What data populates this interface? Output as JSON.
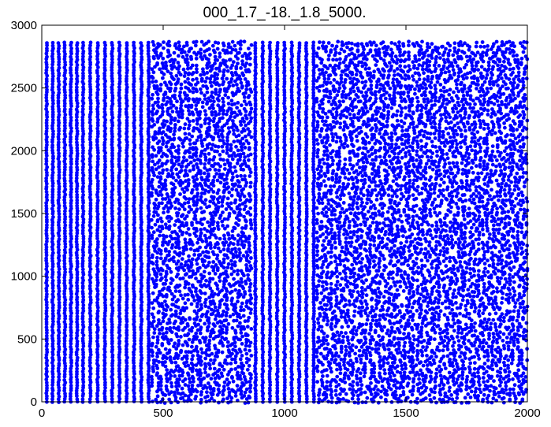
{
  "chart_data": {
    "type": "scatter",
    "title": "000_1.7_-18._1.8_5000.",
    "xlabel": "",
    "ylabel": "",
    "xlim": [
      0,
      2000
    ],
    "ylim": [
      0,
      3000
    ],
    "xticks": [
      0,
      500,
      1000,
      1500,
      2000
    ],
    "yticks": [
      0,
      500,
      1000,
      1500,
      2000,
      2500,
      3000
    ],
    "xtick_labels": [
      "0",
      "500",
      "1000",
      "1500",
      "2000"
    ],
    "ytick_labels": [
      "0",
      "500",
      "1000",
      "1500",
      "2000",
      "2500",
      "3000"
    ],
    "grid": false,
    "legend": "none",
    "marker_color": "#0000ff",
    "point_y_range": [
      0,
      2870
    ],
    "regular_column_x": [
      20,
      45,
      70,
      95,
      120,
      145,
      170,
      200,
      230,
      260,
      290,
      320,
      350,
      380,
      410,
      440,
      880,
      910,
      940,
      970,
      1000,
      1030,
      1060,
      1090,
      1120
    ],
    "scattered_regions_x": [
      [
        460,
        860
      ],
      [
        1140,
        1460
      ],
      [
        1460,
        2000
      ]
    ]
  }
}
